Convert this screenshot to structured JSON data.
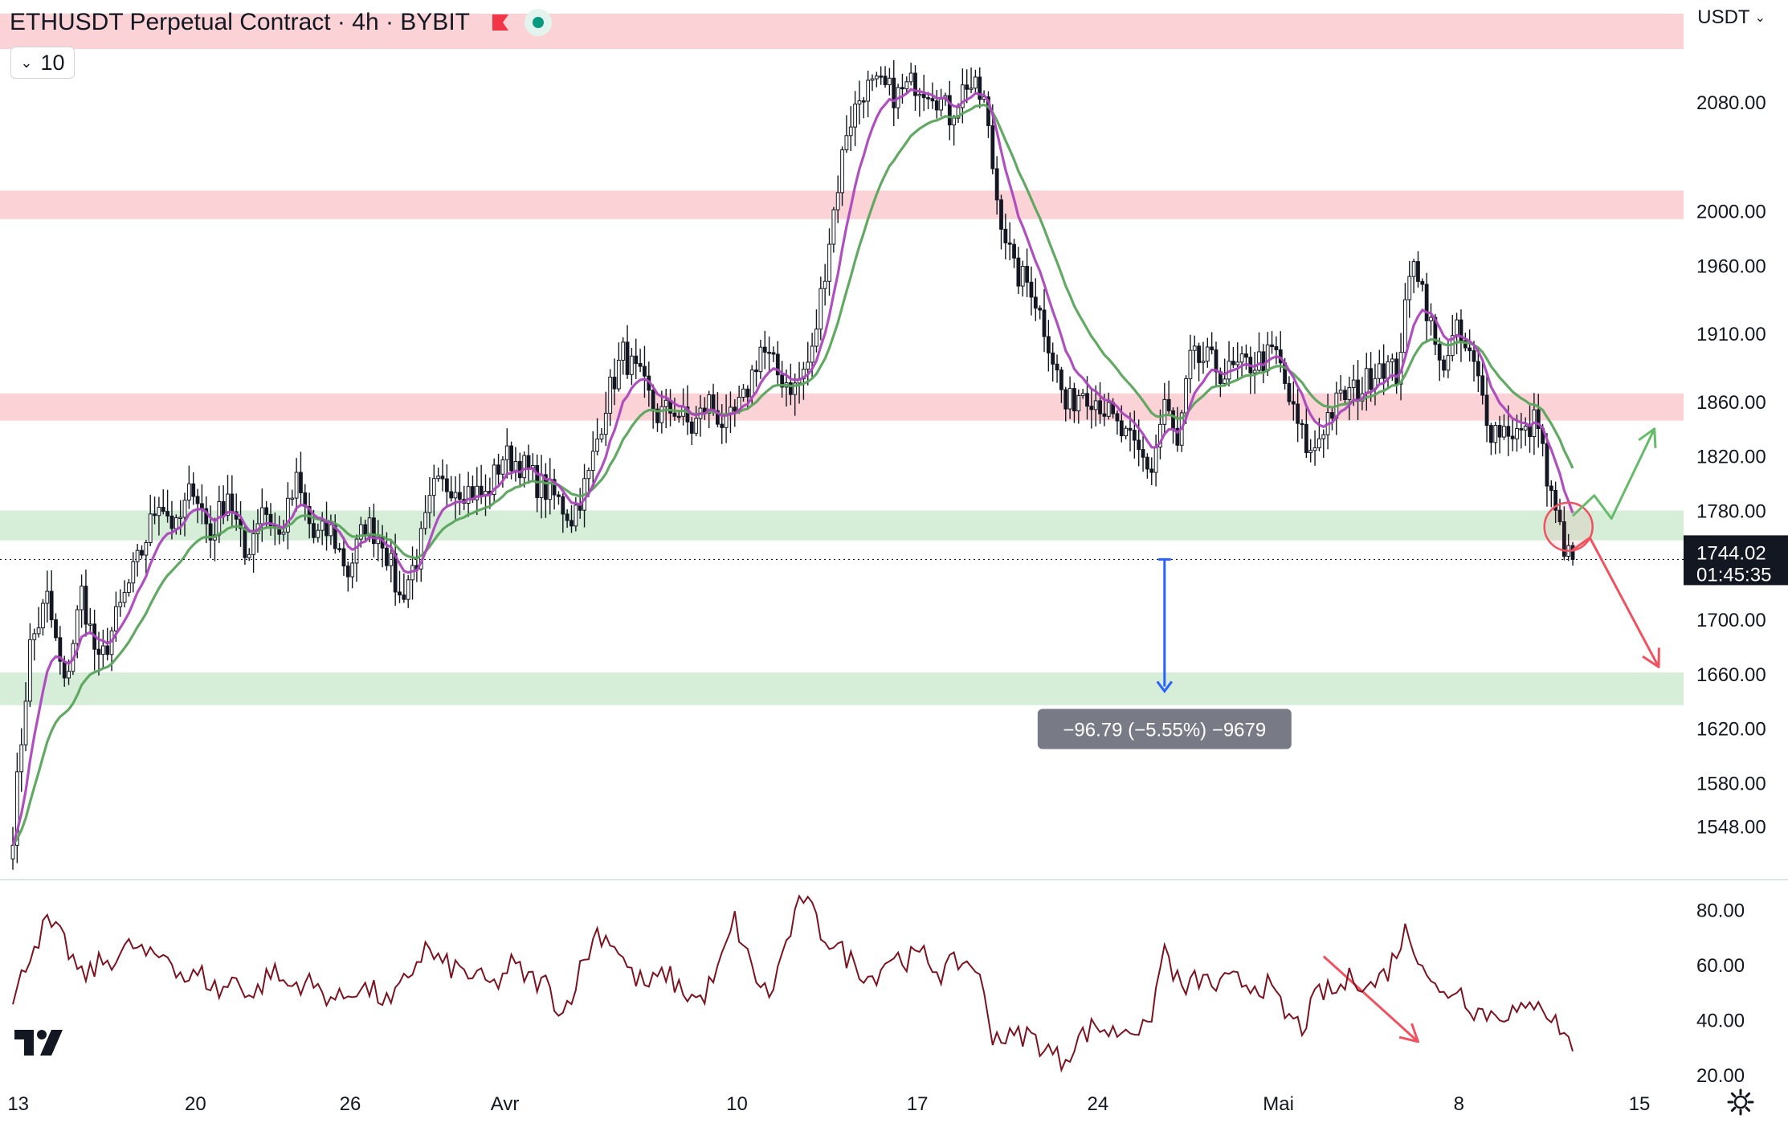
{
  "header": {
    "title": "ETHUSDT Perpetual Contract · 4h · BYBIT",
    "flag_color": "#f23645",
    "status_color": "#089981"
  },
  "legend_toggle": {
    "label": "10",
    "icon": "chevron-down-icon"
  },
  "currency": {
    "label": "USDT",
    "icon": "chevron-down-icon"
  },
  "colors": {
    "resistance_zone": "#fbd2d6",
    "support_zone": "#d6eed8",
    "ema_fast": "#ab47bc",
    "ema_slow": "#5aa45c",
    "rsi": "#7b1420",
    "measure": "#2962ff",
    "arrow_up": "#66bb6a",
    "arrow_down": "#f0525f"
  },
  "chart_data": [
    {
      "type": "candlestick",
      "pane": "price",
      "ylim": [
        1510,
        2155
      ],
      "y_ticks": [
        2080.0,
        2000.0,
        1960.0,
        1910.0,
        1860.0,
        1820.0,
        1780.0,
        1700.0,
        1660.0,
        1620.0,
        1580.0,
        1548.0
      ],
      "y_tick_labels": [
        "2080.00",
        "2000.00",
        "1960.00",
        "1910.00",
        "1860.00",
        "1820.00",
        "1780.00",
        "1700.00",
        "1660.00",
        "1620.00",
        "1580.00",
        "1548.00"
      ],
      "x_tick_labels": [
        {
          "label": "13",
          "t": 0.5
        },
        {
          "label": "20",
          "t": 42.5
        },
        {
          "label": "26",
          "t": 78.5
        },
        {
          "label": "Avr",
          "t": 114.5
        },
        {
          "label": "10",
          "t": 168.5
        },
        {
          "label": "17",
          "t": 210.5
        },
        {
          "label": "24",
          "t": 252.5
        },
        {
          "label": "Mai",
          "t": 294.5
        },
        {
          "label": "8",
          "t": 336.5
        },
        {
          "label": "15",
          "t": 378.5
        }
      ],
      "x_range": [
        0,
        434
      ],
      "candles_count": 364,
      "anchor_closes": [
        [
          0,
          1545
        ],
        [
          4,
          1680
        ],
        [
          8,
          1715
        ],
        [
          12,
          1650
        ],
        [
          16,
          1720
        ],
        [
          20,
          1665
        ],
        [
          24,
          1700
        ],
        [
          30,
          1750
        ],
        [
          34,
          1790
        ],
        [
          38,
          1765
        ],
        [
          42,
          1800
        ],
        [
          46,
          1760
        ],
        [
          50,
          1795
        ],
        [
          54,
          1745
        ],
        [
          58,
          1785
        ],
        [
          62,
          1760
        ],
        [
          66,
          1800
        ],
        [
          70,
          1760
        ],
        [
          74,
          1765
        ],
        [
          78,
          1735
        ],
        [
          82,
          1770
        ],
        [
          86,
          1760
        ],
        [
          90,
          1715
        ],
        [
          94,
          1745
        ],
        [
          98,
          1795
        ],
        [
          102,
          1800
        ],
        [
          106,
          1795
        ],
        [
          110,
          1790
        ],
        [
          114,
          1820
        ],
        [
          118,
          1815
        ],
        [
          122,
          1800
        ],
        [
          126,
          1790
        ],
        [
          130,
          1775
        ],
        [
          134,
          1805
        ],
        [
          138,
          1860
        ],
        [
          142,
          1895
        ],
        [
          146,
          1875
        ],
        [
          150,
          1850
        ],
        [
          154,
          1855
        ],
        [
          158,
          1840
        ],
        [
          162,
          1860
        ],
        [
          166,
          1840
        ],
        [
          170,
          1860
        ],
        [
          174,
          1900
        ],
        [
          178,
          1880
        ],
        [
          182,
          1870
        ],
        [
          186,
          1895
        ],
        [
          190,
          1980
        ],
        [
          194,
          2060
        ],
        [
          198,
          2090
        ],
        [
          202,
          2090
        ],
        [
          206,
          2085
        ],
        [
          210,
          2095
        ],
        [
          214,
          2090
        ],
        [
          218,
          2070
        ],
        [
          222,
          2095
        ],
        [
          226,
          2080
        ],
        [
          229,
          2010
        ],
        [
          233,
          1955
        ],
        [
          237,
          1945
        ],
        [
          241,
          1905
        ],
        [
          245,
          1855
        ],
        [
          249,
          1870
        ],
        [
          253,
          1860
        ],
        [
          257,
          1840
        ],
        [
          261,
          1825
        ],
        [
          265,
          1810
        ],
        [
          268,
          1860
        ],
        [
          271,
          1825
        ],
        [
          274,
          1890
        ],
        [
          278,
          1890
        ],
        [
          282,
          1880
        ],
        [
          286,
          1885
        ],
        [
          290,
          1890
        ],
        [
          294,
          1895
        ],
        [
          298,
          1850
        ],
        [
          302,
          1820
        ],
        [
          306,
          1850
        ],
        [
          310,
          1865
        ],
        [
          314,
          1870
        ],
        [
          318,
          1890
        ],
        [
          322,
          1880
        ],
        [
          326,
          1970
        ],
        [
          329,
          1930
        ],
        [
          332,
          1885
        ],
        [
          336,
          1910
        ],
        [
          340,
          1885
        ],
        [
          344,
          1840
        ],
        [
          348,
          1840
        ],
        [
          352,
          1835
        ],
        [
          355,
          1850
        ],
        [
          357,
          1800
        ],
        [
          360,
          1765
        ],
        [
          362,
          1745
        ],
        [
          363,
          1744.02
        ]
      ],
      "ema_fast_period": 9,
      "ema_slow_period": 21,
      "zones": [
        {
          "kind": "resistance",
          "from": 2119,
          "to": 2145
        },
        {
          "kind": "resistance",
          "from": 1994,
          "to": 2015
        },
        {
          "kind": "resistance",
          "from": 1846,
          "to": 1866
        },
        {
          "kind": "support",
          "from": 1758,
          "to": 1780
        },
        {
          "kind": "support",
          "from": 1637,
          "to": 1661
        }
      ],
      "last_price": "1744.02",
      "countdown": "01:45:35",
      "last_price_value": 1744.02,
      "measurement": {
        "from_t": 268,
        "from": 1744.02,
        "to": 1647.23,
        "label": "−96.79 (−5.55%) −9679"
      },
      "projection_up": [
        [
          363,
          1776
        ],
        [
          368,
          1791
        ],
        [
          372,
          1774
        ],
        [
          382,
          1840
        ]
      ],
      "projection_down": [
        [
          363,
          1751
        ],
        [
          367,
          1760
        ],
        [
          383,
          1665
        ]
      ],
      "highlight": {
        "t": 362,
        "price": 1768
      }
    },
    {
      "type": "line",
      "pane": "rsi",
      "ylim": [
        15,
        90
      ],
      "y_ticks": [
        80.0,
        60.0,
        40.0,
        20.0
      ],
      "y_tick_labels": [
        "80.00",
        "60.00",
        "40.00",
        "20.00"
      ],
      "anchors": [
        [
          0,
          45
        ],
        [
          4,
          65
        ],
        [
          8,
          75
        ],
        [
          12,
          68
        ],
        [
          16,
          55
        ],
        [
          20,
          60
        ],
        [
          24,
          63
        ],
        [
          28,
          67
        ],
        [
          32,
          62
        ],
        [
          36,
          64
        ],
        [
          40,
          55
        ],
        [
          44,
          56
        ],
        [
          48,
          50
        ],
        [
          52,
          55
        ],
        [
          56,
          48
        ],
        [
          60,
          58
        ],
        [
          64,
          52
        ],
        [
          68,
          54
        ],
        [
          72,
          50
        ],
        [
          76,
          47
        ],
        [
          80,
          52
        ],
        [
          84,
          50
        ],
        [
          88,
          45
        ],
        [
          92,
          56
        ],
        [
          96,
          66
        ],
        [
          100,
          60
        ],
        [
          104,
          58
        ],
        [
          108,
          55
        ],
        [
          112,
          52
        ],
        [
          116,
          60
        ],
        [
          120,
          55
        ],
        [
          124,
          53
        ],
        [
          128,
          42
        ],
        [
          132,
          58
        ],
        [
          136,
          72
        ],
        [
          140,
          68
        ],
        [
          144,
          56
        ],
        [
          148,
          52
        ],
        [
          152,
          57
        ],
        [
          156,
          50
        ],
        [
          160,
          47
        ],
        [
          164,
          57
        ],
        [
          168,
          76
        ],
        [
          172,
          58
        ],
        [
          176,
          48
        ],
        [
          180,
          68
        ],
        [
          184,
          85
        ],
        [
          188,
          72
        ],
        [
          192,
          66
        ],
        [
          196,
          60
        ],
        [
          200,
          55
        ],
        [
          204,
          63
        ],
        [
          208,
          62
        ],
        [
          212,
          63
        ],
        [
          216,
          57
        ],
        [
          220,
          61
        ],
        [
          224,
          60
        ],
        [
          228,
          35
        ],
        [
          232,
          33
        ],
        [
          236,
          35
        ],
        [
          240,
          30
        ],
        [
          244,
          25
        ],
        [
          248,
          33
        ],
        [
          252,
          38
        ],
        [
          256,
          35
        ],
        [
          260,
          38
        ],
        [
          264,
          35
        ],
        [
          268,
          66
        ],
        [
          272,
          50
        ],
        [
          276,
          55
        ],
        [
          280,
          52
        ],
        [
          284,
          54
        ],
        [
          288,
          53
        ],
        [
          292,
          52
        ],
        [
          296,
          42
        ],
        [
          300,
          37
        ],
        [
          304,
          50
        ],
        [
          308,
          50
        ],
        [
          312,
          56
        ],
        [
          316,
          52
        ],
        [
          320,
          58
        ],
        [
          324,
          72
        ],
        [
          328,
          62
        ],
        [
          332,
          48
        ],
        [
          336,
          52
        ],
        [
          340,
          44
        ],
        [
          344,
          42
        ],
        [
          348,
          43
        ],
        [
          352,
          42
        ],
        [
          355,
          49
        ],
        [
          358,
          40
        ],
        [
          361,
          36
        ],
        [
          363,
          28
        ]
      ],
      "trend_arrow": [
        [
          305,
          63
        ],
        [
          327,
          32
        ]
      ]
    }
  ]
}
